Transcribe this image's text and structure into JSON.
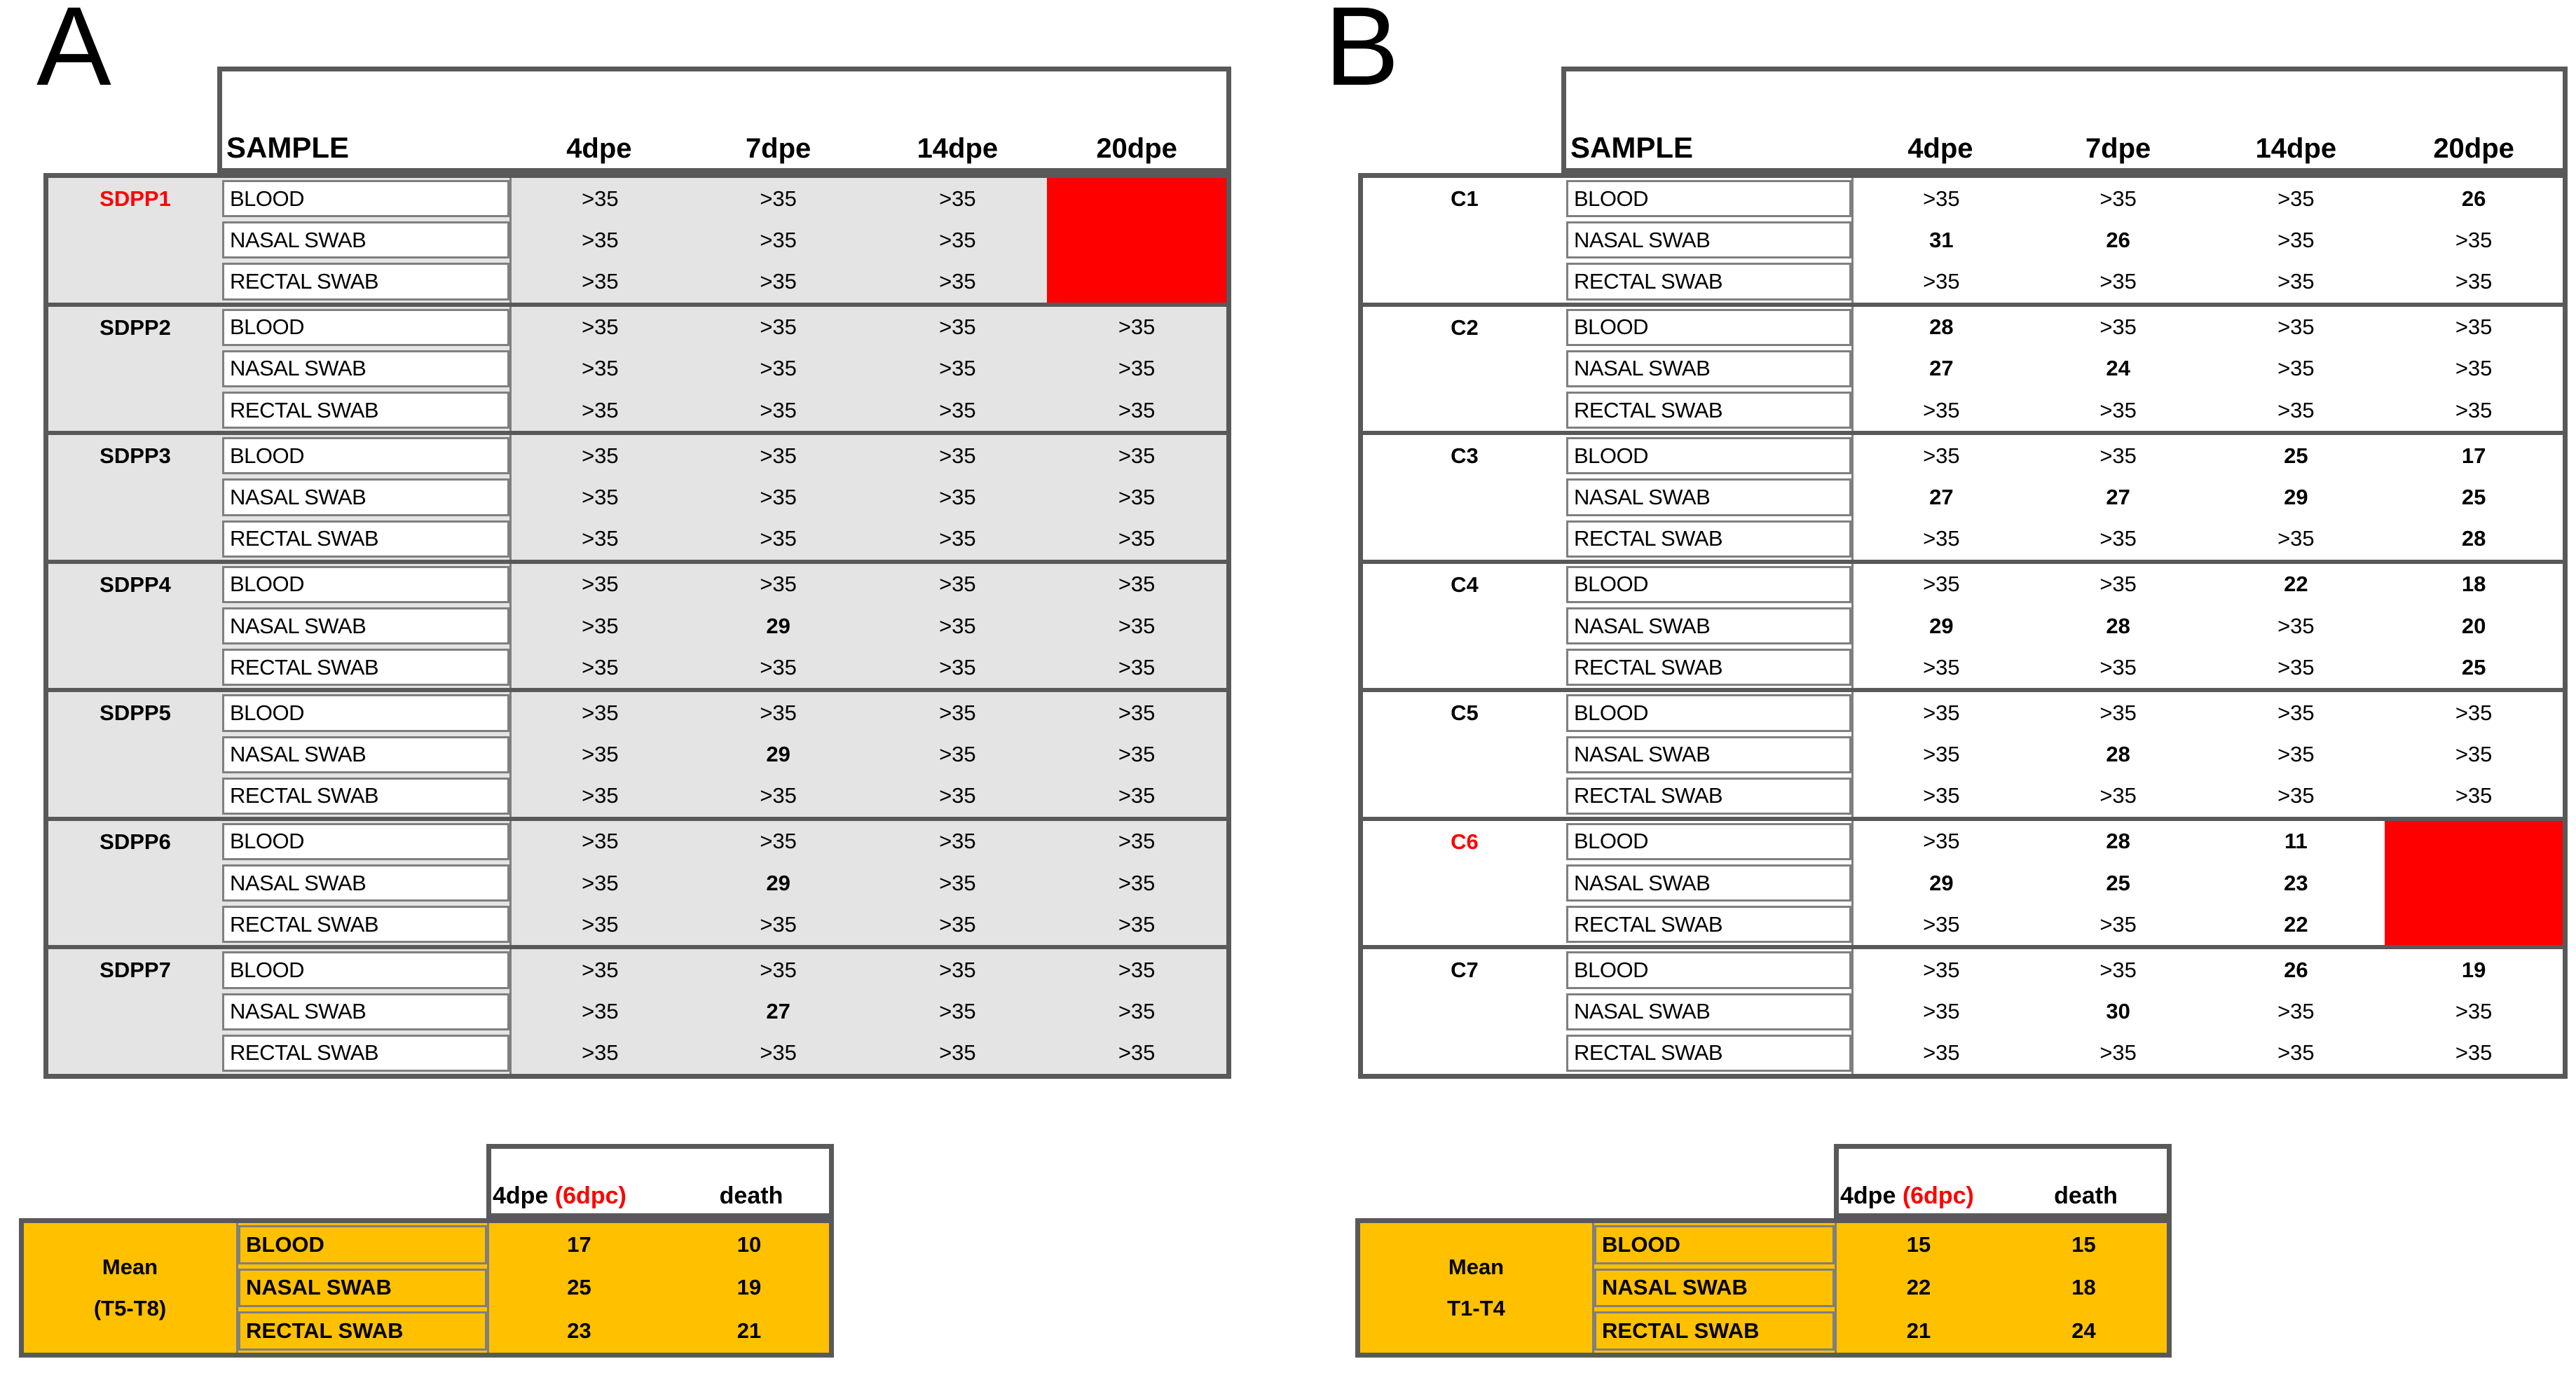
{
  "colors": {
    "death_cell": "#FF0000",
    "highlight_text": "#FF0000",
    "mean_table_bg": "#FFC000",
    "panel_a_body_bg": "#E4E4E4",
    "panel_b_body_bg": "#FFFFFF",
    "border_dark": "#595959",
    "border_light": "#7F7F7F"
  },
  "panels": [
    {
      "label": "A",
      "main_table": {
        "headers": [
          "SAMPLE",
          "4dpe",
          "7dpe",
          "14dpe",
          "20dpe"
        ],
        "groups": [
          {
            "id": "SDPP1",
            "id_red": true,
            "death_cell": true,
            "rows": [
              {
                "sample": "BLOOD",
                "values": [
                  ">35",
                  ">35",
                  ">35",
                  null
                ]
              },
              {
                "sample": "NASAL SWAB",
                "values": [
                  ">35",
                  ">35",
                  ">35",
                  null
                ]
              },
              {
                "sample": "RECTAL SWAB",
                "values": [
                  ">35",
                  ">35",
                  ">35",
                  null
                ]
              }
            ]
          },
          {
            "id": "SDPP2",
            "id_red": false,
            "death_cell": false,
            "rows": [
              {
                "sample": "BLOOD",
                "values": [
                  ">35",
                  ">35",
                  ">35",
                  ">35"
                ]
              },
              {
                "sample": "NASAL SWAB",
                "values": [
                  ">35",
                  ">35",
                  ">35",
                  ">35"
                ]
              },
              {
                "sample": "RECTAL SWAB",
                "values": [
                  ">35",
                  ">35",
                  ">35",
                  ">35"
                ]
              }
            ]
          },
          {
            "id": "SDPP3",
            "id_red": false,
            "death_cell": false,
            "rows": [
              {
                "sample": "BLOOD",
                "values": [
                  ">35",
                  ">35",
                  ">35",
                  ">35"
                ]
              },
              {
                "sample": "NASAL SWAB",
                "values": [
                  ">35",
                  ">35",
                  ">35",
                  ">35"
                ]
              },
              {
                "sample": "RECTAL SWAB",
                "values": [
                  ">35",
                  ">35",
                  ">35",
                  ">35"
                ]
              }
            ]
          },
          {
            "id": "SDPP4",
            "id_red": false,
            "death_cell": false,
            "rows": [
              {
                "sample": "BLOOD",
                "values": [
                  ">35",
                  ">35",
                  ">35",
                  ">35"
                ]
              },
              {
                "sample": "NASAL SWAB",
                "values": [
                  ">35",
                  "29",
                  ">35",
                  ">35"
                ]
              },
              {
                "sample": "RECTAL SWAB",
                "values": [
                  ">35",
                  ">35",
                  ">35",
                  ">35"
                ]
              }
            ]
          },
          {
            "id": "SDPP5",
            "id_red": false,
            "death_cell": false,
            "rows": [
              {
                "sample": "BLOOD",
                "values": [
                  ">35",
                  ">35",
                  ">35",
                  ">35"
                ]
              },
              {
                "sample": "NASAL SWAB",
                "values": [
                  ">35",
                  "29",
                  ">35",
                  ">35"
                ]
              },
              {
                "sample": "RECTAL SWAB",
                "values": [
                  ">35",
                  ">35",
                  ">35",
                  ">35"
                ]
              }
            ]
          },
          {
            "id": "SDPP6",
            "id_red": false,
            "death_cell": false,
            "rows": [
              {
                "sample": "BLOOD",
                "values": [
                  ">35",
                  ">35",
                  ">35",
                  ">35"
                ]
              },
              {
                "sample": "NASAL SWAB",
                "values": [
                  ">35",
                  "29",
                  ">35",
                  ">35"
                ]
              },
              {
                "sample": "RECTAL SWAB",
                "values": [
                  ">35",
                  ">35",
                  ">35",
                  ">35"
                ]
              }
            ]
          },
          {
            "id": "SDPP7",
            "id_red": false,
            "death_cell": false,
            "rows": [
              {
                "sample": "BLOOD",
                "values": [
                  ">35",
                  ">35",
                  ">35",
                  ">35"
                ]
              },
              {
                "sample": "NASAL SWAB",
                "values": [
                  ">35",
                  "27",
                  ">35",
                  ">35"
                ]
              },
              {
                "sample": "RECTAL SWAB",
                "values": [
                  ">35",
                  ">35",
                  ">35",
                  ">35"
                ]
              }
            ]
          }
        ]
      },
      "mean_table": {
        "header": {
          "primary": "4dpe",
          "primary_note": "(6dpc)",
          "secondary": "death"
        },
        "label_lines": [
          "Mean",
          "(T5-T8)"
        ],
        "rows": [
          {
            "sample": "BLOOD",
            "values": [
              "17",
              "10"
            ]
          },
          {
            "sample": "NASAL SWAB",
            "values": [
              "25",
              "19"
            ]
          },
          {
            "sample": "RECTAL SWAB",
            "values": [
              "23",
              "21"
            ]
          }
        ]
      }
    },
    {
      "label": "B",
      "main_table": {
        "headers": [
          "SAMPLE",
          "4dpe",
          "7dpe",
          "14dpe",
          "20dpe"
        ],
        "groups": [
          {
            "id": "C1",
            "id_red": false,
            "death_cell": false,
            "rows": [
              {
                "sample": "BLOOD",
                "values": [
                  ">35",
                  ">35",
                  ">35",
                  "26"
                ]
              },
              {
                "sample": "NASAL SWAB",
                "values": [
                  "31",
                  "26",
                  ">35",
                  ">35"
                ]
              },
              {
                "sample": "RECTAL SWAB",
                "values": [
                  ">35",
                  ">35",
                  ">35",
                  ">35"
                ]
              }
            ]
          },
          {
            "id": "C2",
            "id_red": false,
            "death_cell": false,
            "rows": [
              {
                "sample": "BLOOD",
                "values": [
                  "28",
                  ">35",
                  ">35",
                  ">35"
                ]
              },
              {
                "sample": "NASAL SWAB",
                "values": [
                  "27",
                  "24",
                  ">35",
                  ">35"
                ]
              },
              {
                "sample": "RECTAL SWAB",
                "values": [
                  ">35",
                  ">35",
                  ">35",
                  ">35"
                ]
              }
            ]
          },
          {
            "id": "C3",
            "id_red": false,
            "death_cell": false,
            "rows": [
              {
                "sample": "BLOOD",
                "values": [
                  ">35",
                  ">35",
                  "25",
                  "17"
                ]
              },
              {
                "sample": "NASAL SWAB",
                "values": [
                  "27",
                  "27",
                  "29",
                  "25"
                ]
              },
              {
                "sample": "RECTAL SWAB",
                "values": [
                  ">35",
                  ">35",
                  ">35",
                  "28"
                ]
              }
            ]
          },
          {
            "id": "C4",
            "id_red": false,
            "death_cell": false,
            "rows": [
              {
                "sample": "BLOOD",
                "values": [
                  ">35",
                  ">35",
                  "22",
                  "18"
                ]
              },
              {
                "sample": "NASAL SWAB",
                "values": [
                  "29",
                  "28",
                  ">35",
                  "20"
                ]
              },
              {
                "sample": "RECTAL SWAB",
                "values": [
                  ">35",
                  ">35",
                  ">35",
                  "25"
                ]
              }
            ]
          },
          {
            "id": "C5",
            "id_red": false,
            "death_cell": false,
            "rows": [
              {
                "sample": "BLOOD",
                "values": [
                  ">35",
                  ">35",
                  ">35",
                  ">35"
                ]
              },
              {
                "sample": "NASAL SWAB",
                "values": [
                  ">35",
                  "28",
                  ">35",
                  ">35"
                ]
              },
              {
                "sample": "RECTAL SWAB",
                "values": [
                  ">35",
                  ">35",
                  ">35",
                  ">35"
                ]
              }
            ]
          },
          {
            "id": "C6",
            "id_red": true,
            "death_cell": true,
            "rows": [
              {
                "sample": "BLOOD",
                "values": [
                  ">35",
                  "28",
                  "11",
                  null
                ]
              },
              {
                "sample": "NASAL SWAB",
                "values": [
                  "29",
                  "25",
                  "23",
                  null
                ]
              },
              {
                "sample": "RECTAL SWAB",
                "values": [
                  ">35",
                  ">35",
                  "22",
                  null
                ]
              }
            ]
          },
          {
            "id": "C7",
            "id_red": false,
            "death_cell": false,
            "rows": [
              {
                "sample": "BLOOD",
                "values": [
                  ">35",
                  ">35",
                  "26",
                  "19"
                ]
              },
              {
                "sample": "NASAL SWAB",
                "values": [
                  ">35",
                  "30",
                  ">35",
                  ">35"
                ]
              },
              {
                "sample": "RECTAL SWAB",
                "values": [
                  ">35",
                  ">35",
                  ">35",
                  ">35"
                ]
              }
            ]
          }
        ]
      },
      "mean_table": {
        "header": {
          "primary": "4dpe",
          "primary_note": "(6dpc)",
          "secondary": "death"
        },
        "label_lines": [
          "Mean",
          "T1-T4"
        ],
        "rows": [
          {
            "sample": "BLOOD",
            "values": [
              "15",
              "15"
            ]
          },
          {
            "sample": "NASAL SWAB",
            "values": [
              "22",
              "18"
            ]
          },
          {
            "sample": "RECTAL SWAB",
            "values": [
              "21",
              "24"
            ]
          }
        ]
      }
    }
  ]
}
